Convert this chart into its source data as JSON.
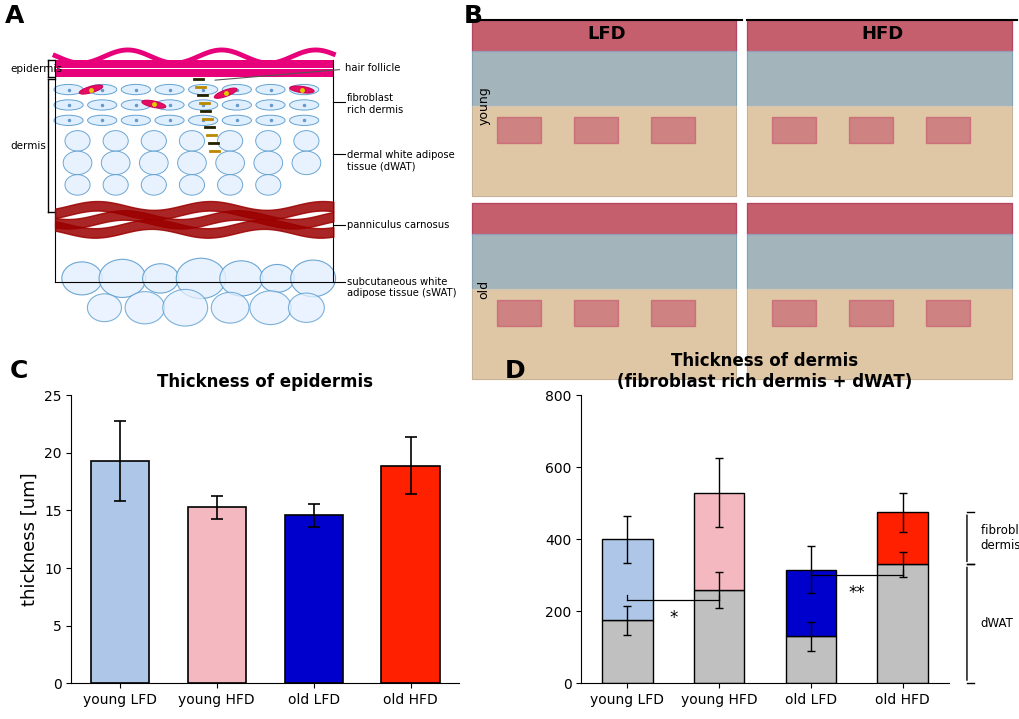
{
  "panel_C": {
    "title": "Thickness of epidermis",
    "ylabel": "thickness [um]",
    "categories": [
      "young LFD",
      "young HFD",
      "old LFD",
      "old HFD"
    ],
    "values": [
      19.3,
      15.3,
      14.6,
      18.9
    ],
    "errors": [
      3.5,
      1.0,
      1.0,
      2.5
    ],
    "bar_colors": [
      "#aec6e8",
      "#f4b8c1",
      "#0000cd",
      "#ff2000"
    ],
    "bar_edge_colors": [
      "#000000",
      "#000000",
      "#000000",
      "#000000"
    ],
    "ylim": [
      0,
      25
    ],
    "yticks": [
      0,
      5,
      10,
      15,
      20,
      25
    ]
  },
  "panel_D": {
    "title": "Thickness of dermis\n(fibroblast rich dermis + dWAT)",
    "ylabel": "",
    "categories": [
      "young LFD",
      "young HFD",
      "old LFD",
      "old HFD"
    ],
    "dwat_values": [
      175,
      260,
      130,
      330
    ],
    "frd_values": [
      225,
      270,
      185,
      145
    ],
    "dwat_errors": [
      40,
      50,
      40,
      35
    ],
    "total_errors": [
      65,
      95,
      65,
      55
    ],
    "dwat_colors": [
      "#c0c0c0",
      "#c0c0c0",
      "#c0c0c0",
      "#c0c0c0"
    ],
    "frd_colors": [
      "#aec6e8",
      "#f4b8c1",
      "#0000cd",
      "#ff2000"
    ],
    "ylim": [
      0,
      800
    ],
    "yticks": [
      0,
      200,
      400,
      600,
      800
    ],
    "significance": [
      "*",
      "",
      "**",
      ""
    ]
  },
  "label_fontsize": 13,
  "title_fontsize": 12,
  "tick_fontsize": 10,
  "panel_label_fontsize": 18,
  "background_color": "#ffffff"
}
